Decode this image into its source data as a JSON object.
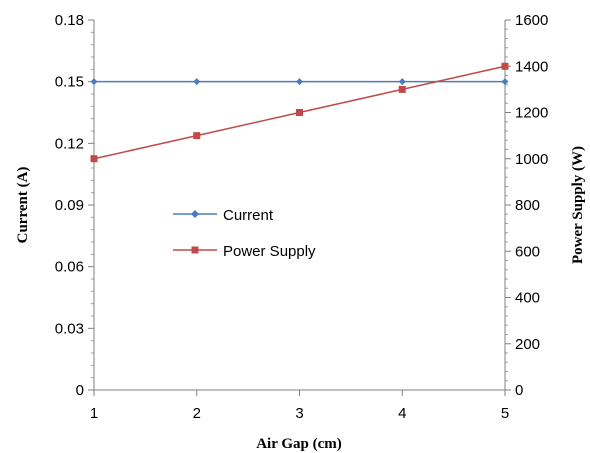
{
  "chart_data": {
    "type": "line",
    "xlabel": "Air Gap (cm)",
    "ylabel": "Current (A)",
    "y2label": "Power Supply (W)",
    "x": [
      1,
      2,
      3,
      4,
      5
    ],
    "x_ticks": [
      "1",
      "2",
      "3",
      "4",
      "5"
    ],
    "xlim": [
      1,
      5
    ],
    "ylim": [
      0,
      0.18
    ],
    "y_ticks": [
      "0",
      "0.03",
      "0.06",
      "0.09",
      "0.12",
      "0.15",
      "0.18"
    ],
    "y_tick_values": [
      0,
      0.03,
      0.06,
      0.09,
      0.12,
      0.15,
      0.18
    ],
    "y2lim": [
      0,
      1600
    ],
    "y2_ticks": [
      "0",
      "200",
      "400",
      "600",
      "800",
      "1000",
      "1200",
      "1400",
      "1600"
    ],
    "y2_tick_values": [
      0,
      200,
      400,
      600,
      800,
      1000,
      1200,
      1400,
      1600
    ],
    "grid": false,
    "legend_position": "center-left",
    "series": [
      {
        "name": "Current",
        "axis": "left",
        "marker": "diamond",
        "color": "#4a7ebb",
        "values": [
          0.15,
          0.15,
          0.15,
          0.15,
          0.15
        ]
      },
      {
        "name": "Power Supply",
        "axis": "right",
        "marker": "square",
        "color": "#be4b48",
        "values": [
          1000,
          1100,
          1200,
          1300,
          1400
        ]
      }
    ]
  }
}
